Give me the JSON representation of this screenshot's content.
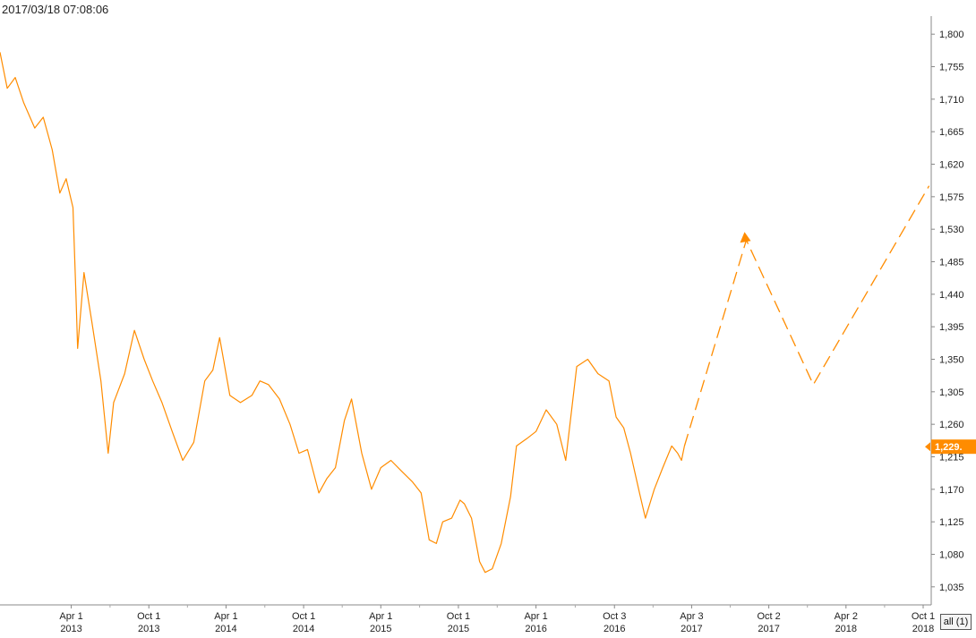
{
  "header": {
    "timestamp": "2017/03/18 07:08:06"
  },
  "controls": {
    "range_button": "all (1)"
  },
  "colors": {
    "series": "#ff8c00",
    "grid": "#999999",
    "text": "#222222"
  },
  "chart_data": {
    "type": "line",
    "title": "",
    "xlabel": "",
    "ylabel": "",
    "ylim": [
      1010,
      1825
    ],
    "yticks": [
      1035,
      1080,
      1125,
      1170,
      1215,
      1260,
      1305,
      1350,
      1395,
      1440,
      1485,
      1530,
      1575,
      1620,
      1665,
      1710,
      1755,
      1800
    ],
    "ytick_labels": [
      "1,035",
      "1,080",
      "1,125",
      "1,170",
      "1,215",
      "1,260",
      "1,305",
      "1,350",
      "1,395",
      "1,440",
      "1,485",
      "1,530",
      "1,575",
      "1,620",
      "1,665",
      "1,710",
      "1,755",
      "1,800"
    ],
    "xlim": [
      "2012-10-15",
      "2018-10-20"
    ],
    "xticks": [
      {
        "date": "2013-04-01",
        "label1": "Apr 1",
        "label2": "2013"
      },
      {
        "date": "2013-10-01",
        "label1": "Oct 1",
        "label2": "2013"
      },
      {
        "date": "2014-04-01",
        "label1": "Apr 1",
        "label2": "2014"
      },
      {
        "date": "2014-10-01",
        "label1": "Oct 1",
        "label2": "2014"
      },
      {
        "date": "2015-04-01",
        "label1": "Apr 1",
        "label2": "2015"
      },
      {
        "date": "2015-10-01",
        "label1": "Oct 1",
        "label2": "2015"
      },
      {
        "date": "2016-04-01",
        "label1": "Apr 1",
        "label2": "2016"
      },
      {
        "date": "2016-10-03",
        "label1": "Oct 3",
        "label2": "2016"
      },
      {
        "date": "2017-04-03",
        "label1": "Apr 3",
        "label2": "2017"
      },
      {
        "date": "2017-10-02",
        "label1": "Oct 2",
        "label2": "2017"
      },
      {
        "date": "2018-04-02",
        "label1": "Apr 2",
        "label2": "2018"
      },
      {
        "date": "2018-10-01",
        "label1": "Oct 1",
        "label2": "2018"
      }
    ],
    "grid": false,
    "series": [
      {
        "style": "solid",
        "x": [
          "2012-10-15",
          "2012-11-01",
          "2012-11-20",
          "2012-12-10",
          "2013-01-05",
          "2013-01-25",
          "2013-02-15",
          "2013-03-05",
          "2013-03-20",
          "2013-04-05",
          "2013-04-12",
          "2013-04-16",
          "2013-05-01",
          "2013-05-20",
          "2013-06-10",
          "2013-06-27",
          "2013-07-10",
          "2013-08-05",
          "2013-08-28",
          "2013-09-20",
          "2013-10-10",
          "2013-11-01",
          "2013-11-25",
          "2013-12-20",
          "2014-01-15",
          "2014-02-10",
          "2014-03-01",
          "2014-03-17",
          "2014-04-10",
          "2014-05-05",
          "2014-06-01",
          "2014-06-20",
          "2014-07-10",
          "2014-08-05",
          "2014-08-30",
          "2014-09-20",
          "2014-10-10",
          "2014-11-06",
          "2014-11-25",
          "2014-12-15",
          "2015-01-05",
          "2015-01-22",
          "2015-02-15",
          "2015-03-10",
          "2015-04-01",
          "2015-04-25",
          "2015-05-20",
          "2015-06-15",
          "2015-07-05",
          "2015-07-24",
          "2015-08-10",
          "2015-08-25",
          "2015-09-15",
          "2015-10-05",
          "2015-10-15",
          "2015-11-01",
          "2015-11-20",
          "2015-12-03",
          "2015-12-20",
          "2016-01-10",
          "2016-02-01",
          "2016-02-15",
          "2016-03-10",
          "2016-04-01",
          "2016-04-25",
          "2016-05-20",
          "2016-06-10",
          "2016-07-06",
          "2016-08-01",
          "2016-08-25",
          "2016-09-20",
          "2016-10-07",
          "2016-10-25",
          "2016-11-10",
          "2016-12-01",
          "2016-12-15",
          "2017-01-05",
          "2017-01-25",
          "2017-02-15",
          "2017-03-01",
          "2017-03-10",
          "2017-03-17"
        ],
        "y": [
          1775,
          1725,
          1740,
          1705,
          1670,
          1685,
          1640,
          1580,
          1600,
          1560,
          1440,
          1365,
          1470,
          1400,
          1320,
          1220,
          1290,
          1330,
          1390,
          1350,
          1320,
          1290,
          1250,
          1210,
          1235,
          1320,
          1335,
          1380,
          1300,
          1290,
          1300,
          1320,
          1315,
          1295,
          1260,
          1220,
          1225,
          1165,
          1185,
          1200,
          1265,
          1295,
          1220,
          1170,
          1200,
          1210,
          1195,
          1180,
          1165,
          1100,
          1095,
          1125,
          1130,
          1155,
          1150,
          1130,
          1070,
          1055,
          1060,
          1095,
          1160,
          1230,
          1240,
          1250,
          1280,
          1260,
          1210,
          1340,
          1350,
          1330,
          1320,
          1270,
          1255,
          1220,
          1165,
          1130,
          1170,
          1200,
          1230,
          1220,
          1210,
          1230
        ]
      },
      {
        "style": "dashed",
        "x": [
          "2017-03-17",
          "2017-08-10",
          "2018-01-15",
          "2018-10-15"
        ],
        "y": [
          1230,
          1515,
          1315,
          1590
        ]
      }
    ],
    "last_price_label": "1,229.",
    "last_price": 1229
  }
}
